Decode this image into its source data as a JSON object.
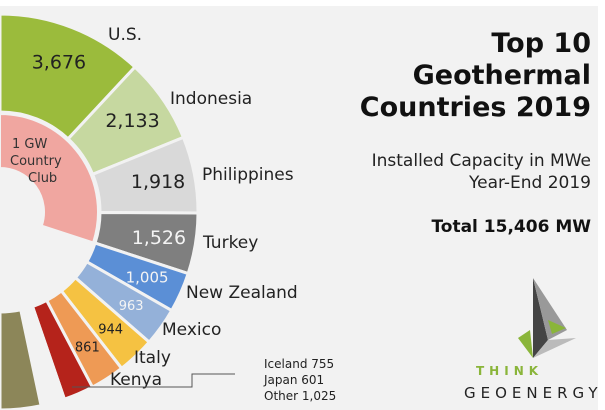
{
  "chart_data": {
    "type": "pie",
    "variant": "half-donut",
    "title": "Top 10 Geothermal Countries 2019",
    "subtitle": [
      "Installed Capacity in MWe",
      "Year-End 2019"
    ],
    "total_label": "Total 15,406 MW",
    "unit": "MWe",
    "slices": [
      {
        "name": "U.S.",
        "value": 3676,
        "label": "3,676",
        "color": "#9bbb3c"
      },
      {
        "name": "Indonesia",
        "value": 2133,
        "label": "2,133",
        "color": "#c6d8a0"
      },
      {
        "name": "Philippines",
        "value": 1918,
        "label": "1,918",
        "color": "#d9d9d9"
      },
      {
        "name": "Turkey",
        "value": 1526,
        "label": "1,526",
        "color": "#7f7f7f"
      },
      {
        "name": "New Zealand",
        "value": 1005,
        "label": "1,005",
        "color": "#5b8fd6"
      },
      {
        "name": "Mexico",
        "value": 963,
        "label": "963",
        "color": "#94b1d9"
      },
      {
        "name": "Italy",
        "value": 944,
        "label": "944",
        "color": "#f5c242"
      },
      {
        "name": "Kenya",
        "value": 861,
        "label": "861",
        "color": "#ee9a55"
      },
      {
        "name": "Iceland",
        "value": 755,
        "color": "#b5231b"
      },
      {
        "name": "Japan",
        "value": 601,
        "color": "#f2f2f2"
      },
      {
        "name": "Other",
        "value": 1025,
        "color": "#8c8659"
      }
    ],
    "inner_group": {
      "label": "1 GW Country Club",
      "members": [
        "U.S.",
        "Indonesia",
        "Philippines",
        "Turkey"
      ],
      "color": "#f0a6a0"
    },
    "side_note": [
      "Iceland 755",
      "Japan 601",
      "Other 1,025"
    ]
  },
  "brand": {
    "line1": "THINK",
    "line2": "GEOENERGY"
  }
}
